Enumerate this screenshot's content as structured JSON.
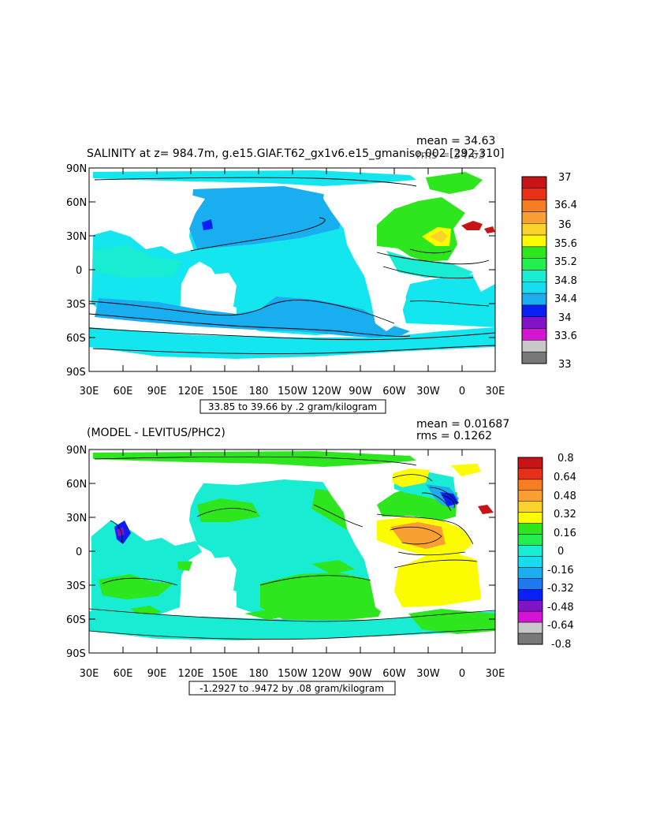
{
  "panel1": {
    "title": "SALINITY at z= 984.7m, g.e15.GIAF.T62_gx1v6.e15_gmaniso.002  [292-310]",
    "mean_text": "mean = 34.63",
    "rms_text": "rms = 34.63",
    "range_text": "33.85 to 39.66 by .2 gram/kilogram",
    "lat_labels": [
      "90N",
      "60N",
      "30N",
      "0",
      "30S",
      "60S",
      "90S"
    ],
    "lon_labels": [
      "30E",
      "60E",
      "90E",
      "120E",
      "150E",
      "180",
      "150W",
      "120W",
      "90W",
      "60W",
      "30W",
      "0",
      "30E"
    ],
    "legend": {
      "labels": [
        "37",
        "36.4",
        "36",
        "35.6",
        "35.2",
        "34.8",
        "34.4",
        "34",
        "33.6",
        "33"
      ],
      "colors": [
        "#c81414",
        "#e83018",
        "#f47e20",
        "#f8a032",
        "#fcd22c",
        "#fcfc00",
        "#2ee61e",
        "#22ee50",
        "#18ecd2",
        "#18dcf0",
        "#1aaef0",
        "#0a1ef6",
        "#8214c8",
        "#d414d4",
        "#c8c8c8",
        "#787878"
      ]
    }
  },
  "panel2": {
    "title": "(MODEL - LEVITUS/PHC2)",
    "mean_text": "mean = 0.01687",
    "rms_text": "rms = 0.1262",
    "range_text": "-1.2927 to .9472 by .08 gram/kilogram",
    "lat_labels": [
      "90N",
      "60N",
      "30N",
      "0",
      "30S",
      "60S",
      "90S"
    ],
    "lon_labels": [
      "30E",
      "60E",
      "90E",
      "120E",
      "150E",
      "180",
      "150W",
      "120W",
      "90W",
      "60W",
      "30W",
      "0",
      "30E"
    ],
    "legend": {
      "labels": [
        "0.8",
        "0.64",
        "0.48",
        "0.32",
        "0.16",
        "0",
        "-0.16",
        "-0.32",
        "-0.48",
        "-0.64",
        "-0.8"
      ],
      "colors": [
        "#c81414",
        "#e83018",
        "#f47e20",
        "#f8a032",
        "#fcd22c",
        "#fcfc00",
        "#2ee61e",
        "#22ee50",
        "#18ecd2",
        "#18dcf0",
        "#1aaef0",
        "#1e78f0",
        "#0a1ef6",
        "#8214c8",
        "#d414d4",
        "#c8c8c8",
        "#787878"
      ]
    }
  },
  "map_colors": {
    "cyan": "#14e6f0",
    "light_blue": "#18aef0",
    "dark_blue": "#0a1ef6",
    "green": "#2ee61e",
    "green2": "#32e632",
    "aqua": "#18ecd2",
    "yellow": "#fcfc00",
    "orange": "#f8a032",
    "red": "#c81414",
    "land": "#ffffff"
  }
}
